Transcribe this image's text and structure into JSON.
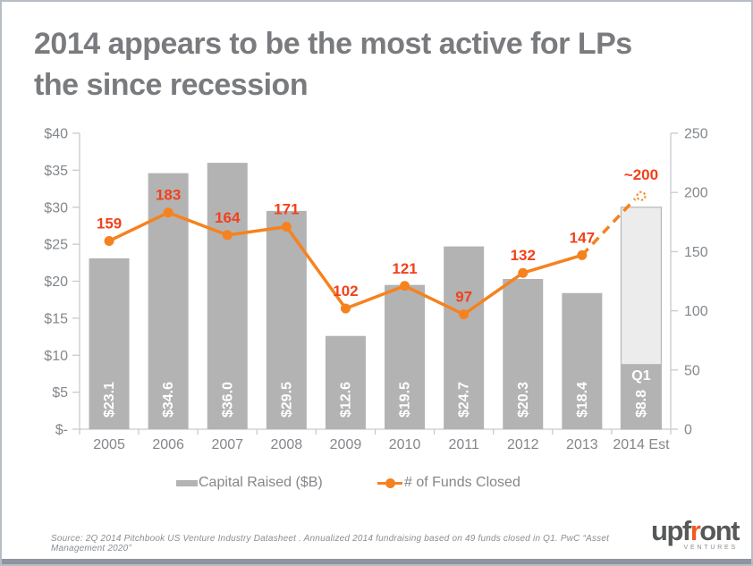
{
  "slide": {
    "title_line1": "2014 appears to be the most active for LPs",
    "title_line2": "the since recession",
    "source_note": "Source: 2Q  2014 Pitchbook US Venture Industry Datasheet .  Annualized 2014 fundraising based on 49 funds closed in Q1.  PwC “Asset Management 2020”",
    "logo": {
      "word_start": "upf",
      "word_accent": "r",
      "word_end": "ont",
      "subtext": "VENTURES"
    }
  },
  "chart_data": {
    "type": "bar",
    "title": "2014 appears to be the most active for LPs the since recession",
    "categories": [
      "2005",
      "2006",
      "2007",
      "2008",
      "2009",
      "2010",
      "2011",
      "2012",
      "2013",
      "2014 Est"
    ],
    "series": [
      {
        "name": "Capital Raised ($B)",
        "type": "bar",
        "axis": "left",
        "values": [
          23.1,
          34.6,
          36.0,
          29.5,
          12.6,
          19.5,
          24.7,
          20.3,
          18.4,
          8.8
        ],
        "value_labels": [
          "$23.1",
          "$34.6",
          "$36.0",
          "$29.5",
          "$12.6",
          "$19.5",
          "$24.7",
          "$20.3",
          "$18.4",
          "$8.8"
        ]
      },
      {
        "name": "# of Funds Closed",
        "type": "line",
        "axis": "right",
        "values": [
          159,
          183,
          164,
          171,
          102,
          121,
          97,
          132,
          147,
          200
        ],
        "point_labels": [
          "159",
          "183",
          "164",
          "171",
          "102",
          "121",
          "97",
          "132",
          "147",
          "~200"
        ],
        "last_segment_style": "dashed",
        "last_marker_style": "dotted-open"
      }
    ],
    "estimate_bar": {
      "category": "2014 Est",
      "annualized_total": 30.0,
      "q1_value": 8.8,
      "q1_label": "Q1",
      "q1_value_label": "$8.8"
    },
    "left_axis": {
      "ticks": [
        "$40",
        "$35",
        "$30",
        "$25",
        "$20",
        "$15",
        "$10",
        "$5",
        "$-"
      ],
      "range": [
        0,
        40
      ]
    },
    "right_axis": {
      "ticks": [
        "250",
        "200",
        "150",
        "100",
        "50",
        "0"
      ],
      "range": [
        0,
        250
      ]
    },
    "legend": {
      "position": "bottom",
      "items": [
        {
          "label": "Capital Raised ($B)",
          "swatch": "bar"
        },
        {
          "label": "# of Funds Closed",
          "swatch": "line"
        }
      ]
    },
    "grid": false,
    "colors": {
      "bar": "#b3b3b3",
      "bar_estimate_fill": "#ececec",
      "bar_estimate_stroke": "#b7b7b7",
      "bar_label": "#ffffff",
      "line": "#f6821f",
      "data_label": "#f2411a",
      "axis_line": "#c7cbcf",
      "axis_text": "#83878b"
    }
  }
}
